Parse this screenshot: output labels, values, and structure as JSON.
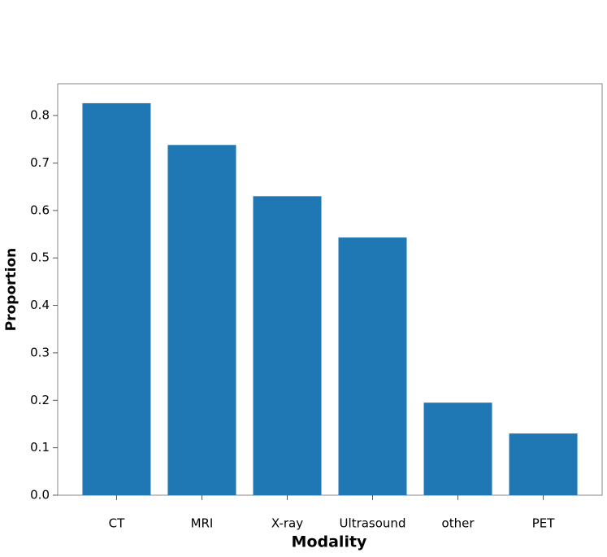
{
  "chart_data": {
    "type": "bar",
    "xlabel": "Modality",
    "ylabel": "Proportion",
    "categories": [
      "CT",
      "MRI",
      "X-ray",
      "Ultrasound",
      "other",
      "PET"
    ],
    "values": [
      0.826,
      0.738,
      0.63,
      0.543,
      0.195,
      0.13
    ],
    "color": "#1f77b4",
    "ylim": [
      0,
      0.867
    ],
    "yticks": [
      {
        "value": 0,
        "label": "0.0"
      },
      0.1,
      0.2,
      0.3,
      0.4,
      0.5,
      0.6,
      0.7,
      0.8
    ],
    "grid": false
  }
}
